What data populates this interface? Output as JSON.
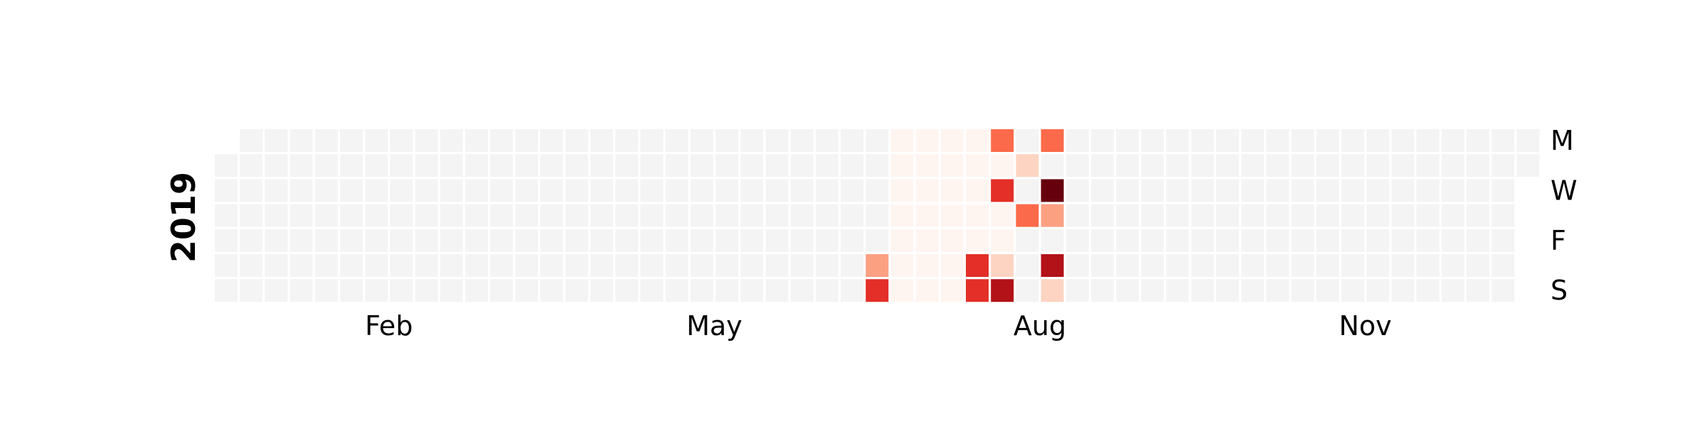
{
  "chart_data": {
    "type": "heatmap",
    "subtype": "calendar",
    "year_label": "2019",
    "month_labels": [
      {
        "label": "Feb",
        "date": "2019-02-01"
      },
      {
        "label": "May",
        "date": "2019-05-01"
      },
      {
        "label": "Aug",
        "date": "2019-08-01"
      },
      {
        "label": "Nov",
        "date": "2019-11-01"
      }
    ],
    "weekday_labels": [
      {
        "label": "M",
        "weekday": "Mon"
      },
      {
        "label": "W",
        "weekday": "Wed"
      },
      {
        "label": "F",
        "weekday": "Fri"
      },
      {
        "label": "S",
        "weekday": "Sun"
      }
    ],
    "date_range": [
      "2019-01-01",
      "2019-12-31"
    ],
    "colormap": "Reds",
    "empty_color": "#f4f4f4",
    "low_color": "#fff5f0",
    "value_range": [
      0,
      6
    ],
    "active_range": [
      "2019-07-08",
      "2019-08-11"
    ],
    "values": [
      {
        "date": "2019-07-06",
        "value": 2
      },
      {
        "date": "2019-07-07",
        "value": 4
      },
      {
        "date": "2019-08-03",
        "value": 4
      },
      {
        "date": "2019-08-04",
        "value": 4
      },
      {
        "date": "2019-08-05",
        "value": 3
      },
      {
        "date": "2019-08-07",
        "value": 4
      },
      {
        "date": "2019-08-10",
        "value": 1
      },
      {
        "date": "2019-08-11",
        "value": 5
      },
      {
        "date": "2019-08-13",
        "value": 1
      },
      {
        "date": "2019-08-15",
        "value": 3
      },
      {
        "date": "2019-08-19",
        "value": 3
      },
      {
        "date": "2019-08-21",
        "value": 6
      },
      {
        "date": "2019-08-22",
        "value": 2
      },
      {
        "date": "2019-08-24",
        "value": 5
      },
      {
        "date": "2019-08-25",
        "value": 1
      }
    ]
  }
}
